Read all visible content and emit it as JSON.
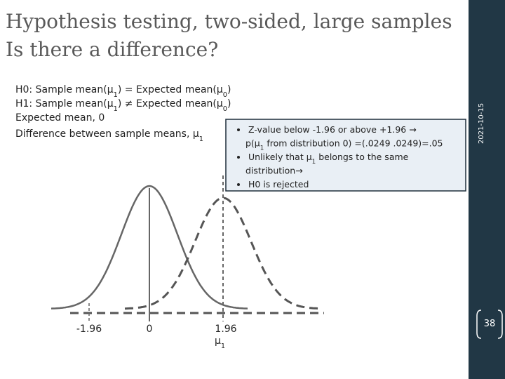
{
  "header": {
    "title_lines": [
      "Hypothesis testing, two-sided, large samples",
      "Is there a difference?"
    ]
  },
  "body": {
    "lines": [
      [
        "H0: Sample mean(μ",
        "1",
        ") = Expected mean(μ",
        "0",
        ")"
      ],
      [
        "H1: Sample mean(μ",
        "1",
        ") ≠ Expected mean(μ",
        "0",
        ")"
      ],
      [
        "Expected mean, 0"
      ],
      [
        "Difference between sample means, μ",
        "1"
      ]
    ]
  },
  "callout": {
    "bullets": [
      {
        "lines": [
          [
            "Z-value  below -1.96 or above +1.96 →"
          ],
          [
            "p(μ",
            "1",
            " from distribution 0) =(.0249 .0249)=.05"
          ]
        ]
      },
      {
        "lines": [
          [
            "Unlikely that μ",
            "1",
            " belongs to the same"
          ],
          [
            "distribution→"
          ]
        ]
      },
      {
        "lines": [
          [
            "H0 is rejected"
          ]
        ]
      }
    ]
  },
  "figure": {
    "labels": [
      "-1.96",
      "0",
      "1.96"
    ],
    "mu_label": [
      "μ",
      "1"
    ]
  },
  "sidebar": {
    "date": "2021-10-15",
    "page_number": "38"
  }
}
